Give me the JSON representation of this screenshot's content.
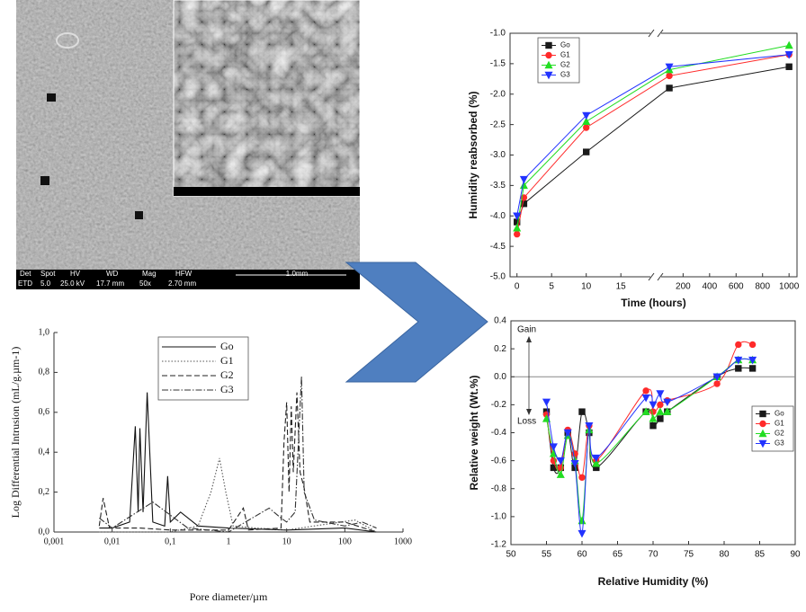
{
  "image": {
    "info_labels": [
      "Det",
      "Spot",
      "HV",
      "WD",
      "Mag",
      "HFW"
    ],
    "info_values": [
      "ETD",
      "5.0",
      "25.0 kV",
      "17.7 mm",
      "50x",
      "2.70 mm"
    ],
    "scale_bar": "1.0mm"
  },
  "chart_data": [
    {
      "type": "line",
      "y_label": "Humidity reabsorbed (%)",
      "x_label": "Time (hours)",
      "x": [
        0,
        1,
        10,
        96,
        1000
      ],
      "x_segments": [
        [
          -1,
          19
        ],
        [
          48,
          1060
        ]
      ],
      "xticks": [
        0,
        5,
        10,
        15,
        200,
        400,
        600,
        800,
        1000
      ],
      "ylim": [
        -5,
        -1
      ],
      "yticks": [
        {
          "value": -5,
          "label": "-5.0"
        },
        -4.5,
        {
          "value": -4,
          "label": "-4.0"
        },
        -3.5,
        {
          "value": -3,
          "label": "-3.0"
        },
        -2.5,
        {
          "value": -2,
          "label": "-2.0"
        },
        -1.5,
        {
          "value": -1,
          "label": "-1.0"
        }
      ],
      "legend": "upper left",
      "series": [
        {
          "name": "Go",
          "color": "#1a1a1a",
          "marker": "square",
          "values": [
            -4.1,
            -3.8,
            -2.95,
            -1.9,
            -1.55
          ]
        },
        {
          "name": "G1",
          "color": "#ff2a2a",
          "marker": "circle",
          "values": [
            -4.3,
            -3.7,
            -2.55,
            -1.7,
            -1.35
          ]
        },
        {
          "name": "G2",
          "color": "#22dd22",
          "marker": "triangle-up",
          "values": [
            -4.2,
            -3.5,
            -2.45,
            -1.6,
            -1.2
          ]
        },
        {
          "name": "G3",
          "color": "#2233ff",
          "marker": "triangle-down",
          "values": [
            -4.0,
            -3.4,
            -2.35,
            -1.55,
            -1.35
          ]
        }
      ]
    },
    {
      "type": "line",
      "y_label": "Log Differential Intrusion (mL/g.µm-1)",
      "x_label": "Pore diameter/µm",
      "xscale": "log",
      "xlim": [
        0.001,
        1000
      ],
      "xticks": [
        {
          "value": 0.001,
          "label": "0,001"
        },
        {
          "value": 0.01,
          "label": "0,01"
        },
        {
          "value": 0.1,
          "label": "0,1"
        },
        1,
        10,
        100,
        1000
      ],
      "ylim": [
        0,
        1
      ],
      "yticks": [
        {
          "value": 0,
          "label": "0,0"
        },
        {
          "value": 0.2,
          "label": "0,2"
        },
        {
          "value": 0.4,
          "label": "0,4"
        },
        {
          "value": 0.6,
          "label": "0,6"
        },
        {
          "value": 0.8,
          "label": "0,8"
        },
        {
          "value": 1,
          "label": "1,0"
        }
      ],
      "legend": "upper center",
      "series": [
        {
          "name": "Go",
          "color": "#111111",
          "dash": "solid",
          "x": [
            0.006,
            0.01,
            0.02,
            0.025,
            0.028,
            0.03,
            0.034,
            0.04,
            0.05,
            0.08,
            0.09,
            0.1,
            0.15,
            0.3,
            1,
            10,
            100,
            350
          ],
          "values": [
            0.02,
            0.02,
            0.05,
            0.53,
            0.1,
            0.52,
            0.1,
            0.7,
            0.05,
            0.03,
            0.28,
            0.05,
            0.1,
            0.03,
            0.02,
            0.01,
            0.02,
            0.0
          ]
        },
        {
          "name": "G1",
          "color": "#555555",
          "dash": "dotted",
          "x": [
            0.006,
            0.1,
            0.3,
            0.5,
            0.7,
            0.9,
            1.2,
            3,
            10,
            50,
            150,
            350
          ],
          "values": [
            0.0,
            0.0,
            0.03,
            0.2,
            0.37,
            0.2,
            0.03,
            0.02,
            0.01,
            0.04,
            0.06,
            0.0
          ]
        },
        {
          "name": "G2",
          "color": "#222222",
          "dash": "dashed",
          "x": [
            0.006,
            0.007,
            0.009,
            0.03,
            0.1,
            1,
            1.8,
            2.2,
            8,
            9,
            10,
            11,
            12,
            13,
            15,
            17,
            20,
            25,
            100,
            350
          ],
          "values": [
            0.03,
            0.17,
            0.02,
            0.02,
            0.01,
            0.01,
            0.12,
            0.01,
            0.02,
            0.45,
            0.65,
            0.2,
            0.63,
            0.3,
            0.7,
            0.3,
            0.22,
            0.05,
            0.05,
            0.0
          ]
        },
        {
          "name": "G3",
          "color": "#333333",
          "dash": "dashdot",
          "x": [
            0.006,
            0.01,
            0.05,
            0.2,
            1,
            5,
            8,
            10,
            14,
            18,
            20,
            30,
            100,
            200,
            350
          ],
          "values": [
            0.07,
            0.02,
            0.15,
            0.02,
            0.0,
            0.12,
            0.07,
            0.05,
            0.1,
            0.78,
            0.2,
            0.06,
            0.03,
            0.05,
            0.02
          ]
        }
      ]
    },
    {
      "type": "line",
      "y_label": "Relative weight (Wt.%)",
      "x_label": "Relative Humidity (%)",
      "annotations": [
        "Gain",
        "Loss"
      ],
      "curve": "smooth",
      "reference_line": 0,
      "x": [
        55,
        56,
        57,
        58,
        59,
        60,
        61,
        62,
        69,
        70,
        71,
        72,
        79,
        82,
        84
      ],
      "xlim": [
        50,
        90
      ],
      "xticks": [
        50,
        55,
        60,
        65,
        70,
        75,
        80,
        85,
        90
      ],
      "ylim": [
        -1.2,
        0.4
      ],
      "yticks": [
        -1.2,
        {
          "value": -1,
          "label": "-1.0"
        },
        -0.8,
        -0.6,
        -0.4,
        -0.2,
        {
          "value": 0,
          "label": "0.0"
        },
        0.2,
        0.4
      ],
      "legend": "center right",
      "series": [
        {
          "name": "Go",
          "color": "#1a1a1a",
          "marker": "square",
          "values": [
            -0.25,
            -0.65,
            -0.65,
            -0.4,
            -0.65,
            -0.25,
            -0.4,
            -0.65,
            -0.25,
            -0.35,
            -0.3,
            -0.25,
            0.0,
            0.06,
            0.06
          ]
        },
        {
          "name": "G1",
          "color": "#ff2a2a",
          "marker": "circle",
          "values": [
            -0.27,
            -0.6,
            -0.65,
            -0.38,
            -0.55,
            -0.72,
            -0.35,
            -0.6,
            -0.1,
            -0.25,
            -0.2,
            -0.17,
            -0.05,
            0.23,
            0.23
          ]
        },
        {
          "name": "G2",
          "color": "#22dd22",
          "marker": "triangle-up",
          "values": [
            -0.3,
            -0.55,
            -0.7,
            -0.42,
            -0.6,
            -1.03,
            -0.38,
            -0.62,
            -0.25,
            -0.3,
            -0.25,
            -0.25,
            0.0,
            0.12,
            0.12
          ]
        },
        {
          "name": "G3",
          "color": "#2233ff",
          "marker": "triangle-down",
          "values": [
            -0.18,
            -0.5,
            -0.6,
            -0.4,
            -0.62,
            -1.12,
            -0.35,
            -0.58,
            -0.15,
            -0.2,
            -0.12,
            -0.18,
            0.0,
            0.12,
            0.12
          ]
        }
      ]
    }
  ]
}
